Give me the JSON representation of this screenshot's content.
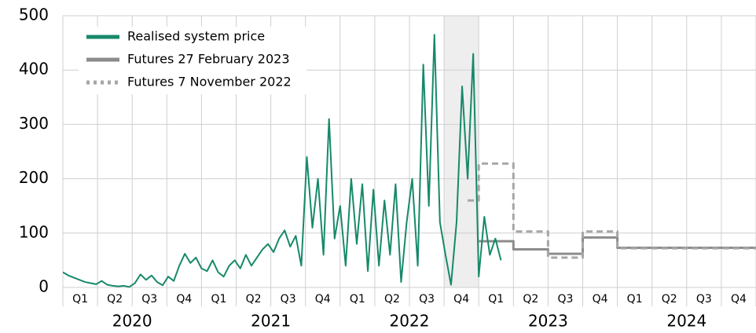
{
  "chart_data": {
    "type": "line",
    "xlim": [
      2020,
      2025
    ],
    "ylim": [
      0,
      500
    ],
    "yticks": [
      0,
      100,
      200,
      300,
      400,
      500
    ],
    "xticks": [
      2020,
      2020.25,
      2020.5,
      2020.75,
      2021,
      2021.25,
      2021.5,
      2021.75,
      2022,
      2022.25,
      2022.5,
      2022.75,
      2023,
      2023.25,
      2023.5,
      2023.75,
      2024,
      2024.25,
      2024.5,
      2024.75,
      2025
    ],
    "quarter_labels": [
      {
        "value": 2020.125,
        "label": "Q1"
      },
      {
        "value": 2020.375,
        "label": "Q2"
      },
      {
        "value": 2020.625,
        "label": "Q3"
      },
      {
        "value": 2020.875,
        "label": "Q4"
      },
      {
        "value": 2021.125,
        "label": "Q1"
      },
      {
        "value": 2021.375,
        "label": "Q2"
      },
      {
        "value": 2021.625,
        "label": "Q3"
      },
      {
        "value": 2021.875,
        "label": "Q4"
      },
      {
        "value": 2022.125,
        "label": "Q1"
      },
      {
        "value": 2022.375,
        "label": "Q2"
      },
      {
        "value": 2022.625,
        "label": "Q3"
      },
      {
        "value": 2022.875,
        "label": "Q4"
      },
      {
        "value": 2023.125,
        "label": "Q1"
      },
      {
        "value": 2023.375,
        "label": "Q2"
      },
      {
        "value": 2023.625,
        "label": "Q3"
      },
      {
        "value": 2023.875,
        "label": "Q4"
      },
      {
        "value": 2024.125,
        "label": "Q1"
      },
      {
        "value": 2024.375,
        "label": "Q2"
      },
      {
        "value": 2024.625,
        "label": "Q3"
      },
      {
        "value": 2024.875,
        "label": "Q4"
      }
    ],
    "year_labels": [
      {
        "value": 2020.5,
        "label": "2020"
      },
      {
        "value": 2021.5,
        "label": "2021"
      },
      {
        "value": 2022.5,
        "label": "2022"
      },
      {
        "value": 2023.5,
        "label": "2023"
      },
      {
        "value": 2024.5,
        "label": "2024"
      }
    ],
    "highlight": [
      2022.75,
      2023.0
    ],
    "grid": true,
    "legend": "top-left",
    "series": [
      {
        "name": "Realised system price",
        "color": "#17896a",
        "step": false,
        "dash": false,
        "x": [
          2020.0,
          2020.04,
          2020.08,
          2020.12,
          2020.16,
          2020.2,
          2020.24,
          2020.28,
          2020.32,
          2020.36,
          2020.4,
          2020.44,
          2020.48,
          2020.52,
          2020.56,
          2020.6,
          2020.64,
          2020.68,
          2020.72,
          2020.76,
          2020.8,
          2020.84,
          2020.88,
          2020.92,
          2020.96,
          2021.0,
          2021.04,
          2021.08,
          2021.12,
          2021.16,
          2021.2,
          2021.24,
          2021.28,
          2021.32,
          2021.36,
          2021.4,
          2021.44,
          2021.48,
          2021.52,
          2021.56,
          2021.6,
          2021.64,
          2021.68,
          2021.72,
          2021.76,
          2021.8,
          2021.84,
          2021.88,
          2021.92,
          2021.96,
          2022.0,
          2022.04,
          2022.08,
          2022.12,
          2022.16,
          2022.2,
          2022.24,
          2022.28,
          2022.32,
          2022.36,
          2022.4,
          2022.44,
          2022.48,
          2022.52,
          2022.56,
          2022.6,
          2022.64,
          2022.68,
          2022.72,
          2022.76,
          2022.8,
          2022.84,
          2022.88,
          2022.92,
          2022.96,
          2023.0,
          2023.04,
          2023.08,
          2023.12,
          2023.16
        ],
        "values": [
          28,
          22,
          18,
          14,
          10,
          8,
          6,
          12,
          5,
          3,
          2,
          3,
          1,
          8,
          24,
          14,
          22,
          10,
          4,
          20,
          12,
          40,
          62,
          45,
          55,
          35,
          30,
          50,
          28,
          20,
          40,
          50,
          35,
          60,
          40,
          55,
          70,
          80,
          65,
          90,
          105,
          75,
          95,
          40,
          240,
          110,
          200,
          60,
          310,
          90,
          150,
          40,
          200,
          80,
          190,
          30,
          180,
          40,
          160,
          60,
          190,
          10,
          120,
          200,
          40,
          410,
          150,
          465,
          120,
          60,
          5,
          120,
          370,
          200,
          430,
          20,
          130,
          60,
          90,
          50
        ]
      },
      {
        "name": "Futures 27 February 2023",
        "color": "#8c8c8c",
        "step": true,
        "dash": false,
        "x": [
          2023.0,
          2023.25,
          2023.5,
          2023.75,
          2024.0,
          2024.25,
          2024.5,
          2024.75
        ],
        "values": [
          85,
          70,
          62,
          92,
          73,
          73,
          73,
          73
        ]
      },
      {
        "name": "Futures 7 November 2022",
        "color": "#a6a6a6",
        "step": true,
        "dash": true,
        "x": [
          2022.92,
          2023.0,
          2023.25,
          2023.5,
          2023.75,
          2024.0,
          2024.25,
          2024.5,
          2024.75
        ],
        "values": [
          160,
          228,
          103,
          55,
          103,
          72,
          72,
          72,
          72
        ]
      }
    ]
  }
}
